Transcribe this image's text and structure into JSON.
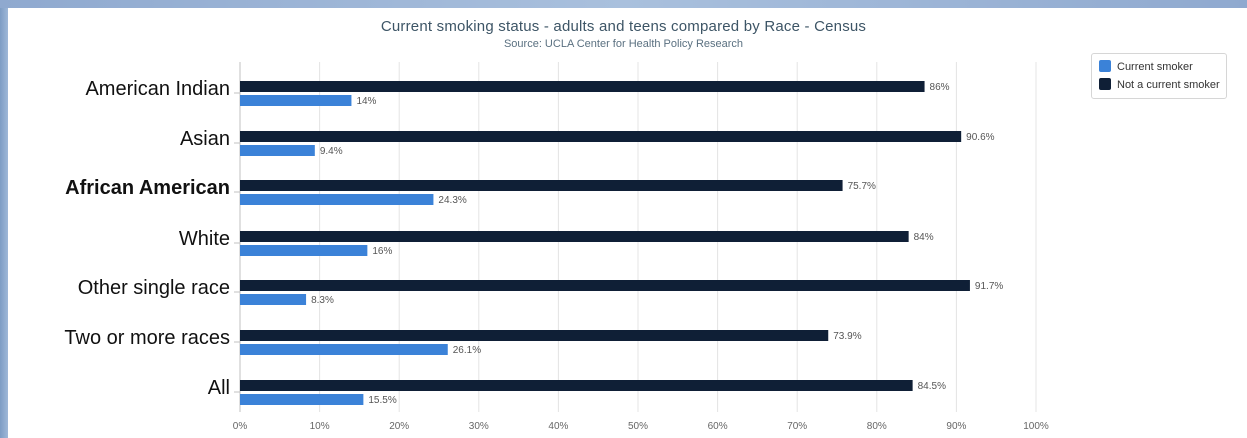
{
  "chart_data": {
    "type": "bar",
    "orientation": "horizontal",
    "title": "Current smoking status - adults and teens compared by Race - Census",
    "subtitle": "Source: UCLA Center for Health Policy Research",
    "categories": [
      "American Indian",
      "Asian",
      "African American",
      "White",
      "Other single race",
      "Two or more races",
      "All"
    ],
    "highlighted_category": "African American",
    "series": [
      {
        "name": "Not a current smoker",
        "color": "#0f1f36",
        "values": [
          86,
          90.6,
          75.7,
          84,
          91.7,
          73.9,
          84.5
        ],
        "labels": [
          "86%",
          "90.6%",
          "75.7%",
          "84%",
          "91.7%",
          "73.9%",
          "84.5%"
        ]
      },
      {
        "name": "Current smoker",
        "color": "#3b82d8",
        "values": [
          14,
          9.4,
          24.3,
          16,
          8.3,
          26.1,
          15.5
        ],
        "labels": [
          "14%",
          "9.4%",
          "24.3%",
          "16%",
          "8.3%",
          "26.1%",
          "15.5%"
        ]
      }
    ],
    "xlim": [
      0,
      100
    ],
    "x_ticks": [
      "0%",
      "10%",
      "20%",
      "30%",
      "40%",
      "50%",
      "60%",
      "70%",
      "80%",
      "90%",
      "100%"
    ],
    "grid": true,
    "legend_position": "top-right"
  },
  "legend": {
    "items": [
      {
        "label": "Current smoker",
        "color": "#3b82d8"
      },
      {
        "label": "Not a current smoker",
        "color": "#0f1f36"
      }
    ]
  }
}
